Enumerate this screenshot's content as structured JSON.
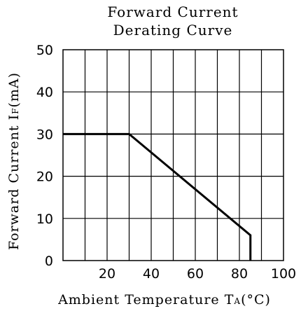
{
  "chart_data": {
    "type": "line",
    "title_line1": "Forward Current",
    "title_line2": "Derating Curve",
    "xlabel": "Ambient Temperature T",
    "xlabel_sub": "A",
    "xlabel_unit": "(°C)",
    "ylabel": "Forward Current I",
    "ylabel_sub": "F",
    "ylabel_unit": "(mA)",
    "xlim": [
      0,
      100
    ],
    "ylim": [
      0,
      50
    ],
    "x_grid": [
      10,
      20,
      30,
      40,
      50,
      60,
      70,
      80,
      90
    ],
    "y_grid": [
      10,
      20,
      30,
      40
    ],
    "x_ticks": [
      {
        "value": 20,
        "label": "20"
      },
      {
        "value": 40,
        "label": "40"
      },
      {
        "value": 60,
        "label": "60"
      },
      {
        "value": 80,
        "label": "80"
      },
      {
        "value": 100,
        "label": "100"
      }
    ],
    "y_ticks": [
      {
        "value": 0,
        "label": "0"
      },
      {
        "value": 10,
        "label": "10"
      },
      {
        "value": 20,
        "label": "20"
      },
      {
        "value": 30,
        "label": "30"
      },
      {
        "value": 40,
        "label": "40"
      },
      {
        "value": 50,
        "label": "50"
      }
    ],
    "grid": true,
    "series": [
      {
        "x": [
          0,
          30,
          85,
          85
        ],
        "y": [
          30,
          30,
          6,
          0
        ]
      }
    ]
  }
}
